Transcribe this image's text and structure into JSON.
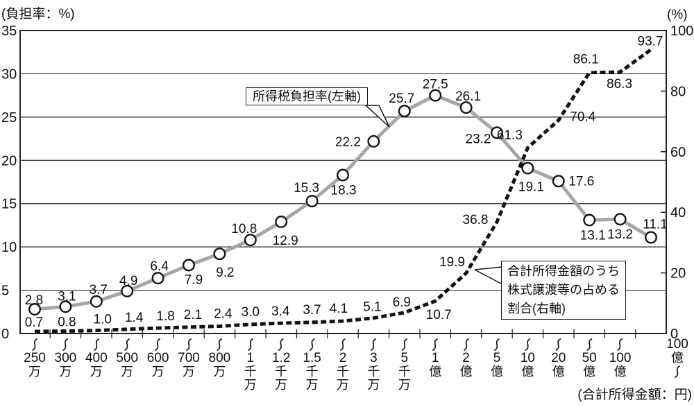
{
  "figure": {
    "left_axis_title": "(負担率：%)",
    "right_axis_title": "(%)",
    "x_axis_title": "(合計所得金額：円)"
  },
  "callouts": {
    "series1_label": "所得税負担率(左軸)",
    "series2_lines": [
      "合計所得金額のうち",
      "株式譲渡等の占める",
      "割合(右軸)"
    ]
  },
  "chart_data": {
    "type": "line",
    "title": "",
    "x_categories": [
      "〜250万",
      "〜300万",
      "〜400万",
      "〜500万",
      "〜600万",
      "〜700万",
      "〜800万",
      "〜1千万",
      "〜1.2千万",
      "〜1.5千万",
      "〜2千万",
      "〜3千万",
      "〜5千万",
      "〜1億",
      "〜2億",
      "〜5億",
      "〜10億",
      "〜20億",
      "〜50億",
      "〜100億",
      "100億〜"
    ],
    "x_category_render": [
      {
        "wave": "top",
        "num": "250",
        "units": "万"
      },
      {
        "wave": "top",
        "num": "300",
        "units": "万"
      },
      {
        "wave": "top",
        "num": "400",
        "units": "万"
      },
      {
        "wave": "top",
        "num": "500",
        "units": "万"
      },
      {
        "wave": "top",
        "num": "600",
        "units": "万"
      },
      {
        "wave": "top",
        "num": "700",
        "units": "万"
      },
      {
        "wave": "top",
        "num": "800",
        "units": "万"
      },
      {
        "wave": "top",
        "num": "1",
        "units": "千万"
      },
      {
        "wave": "top",
        "num": "1.2",
        "units": "千万"
      },
      {
        "wave": "top",
        "num": "1.5",
        "units": "千万"
      },
      {
        "wave": "top",
        "num": "2",
        "units": "千万"
      },
      {
        "wave": "top",
        "num": "3",
        "units": "千万"
      },
      {
        "wave": "top",
        "num": "5",
        "units": "千万"
      },
      {
        "wave": "top",
        "num": "1",
        "units": "億"
      },
      {
        "wave": "top",
        "num": "2",
        "units": "億"
      },
      {
        "wave": "top",
        "num": "5",
        "units": "億"
      },
      {
        "wave": "top",
        "num": "10",
        "units": "億"
      },
      {
        "wave": "top",
        "num": "20",
        "units": "億"
      },
      {
        "wave": "top",
        "num": "50",
        "units": "億"
      },
      {
        "wave": "top",
        "num": "100",
        "units": "億"
      },
      {
        "wave": "bottom",
        "num": "100",
        "units": "億"
      }
    ],
    "series": [
      {
        "name": "所得税負担率(左軸)",
        "axis": "left",
        "line": "solid",
        "color": "#a6a6a6",
        "marker": "circle",
        "values": [
          2.8,
          3.1,
          3.7,
          4.9,
          6.4,
          7.9,
          9.2,
          10.8,
          12.9,
          15.3,
          18.3,
          22.2,
          25.7,
          27.5,
          26.1,
          23.2,
          19.1,
          17.6,
          13.1,
          13.2,
          11.1
        ]
      },
      {
        "name": "合計所得金額のうち株式譲渡等の占める割合(右軸)",
        "axis": "right",
        "line": "dashed",
        "color": "#121212",
        "marker": "none",
        "values": [
          0.7,
          0.8,
          1.0,
          1.4,
          1.8,
          2.1,
          2.4,
          3.0,
          3.4,
          3.7,
          4.1,
          5.1,
          6.9,
          10.7,
          19.9,
          36.8,
          61.3,
          70.4,
          86.1,
          86.3,
          93.7
        ]
      }
    ],
    "left_axis": {
      "title": "(負担率：%)",
      "min": 0,
      "max": 35,
      "ticks": [
        0,
        5,
        10,
        15,
        20,
        25,
        30,
        35
      ]
    },
    "right_axis": {
      "title": "(%)",
      "min": 0,
      "max": 100,
      "ticks": [
        0,
        20,
        40,
        60,
        80,
        100
      ]
    },
    "x_axis": {
      "title": "(合計所得金額：円)"
    },
    "grid": "horizontal-at-left-ticks",
    "legend": "callout-boxes-inside-plot",
    "layout_hints": {
      "label_offsets": [
        [
          [
            -1,
            -7
          ],
          [
            2,
            -9
          ],
          [
            3,
            -11
          ],
          [
            2,
            -9
          ],
          [
            2,
            -11
          ],
          [
            7,
            27
          ],
          [
            8,
            33
          ],
          [
            -9,
            -10
          ],
          [
            6,
            33
          ],
          [
            -8,
            -13
          ],
          [
            1,
            28
          ],
          [
            -37,
            7
          ],
          [
            -4,
            -12
          ],
          [
            0,
            -10
          ],
          [
            3,
            -10
          ],
          [
            -27,
            15
          ],
          [
            5,
            33
          ],
          [
            33,
            6
          ],
          [
            5,
            28
          ],
          [
            0,
            28
          ],
          [
            6,
            -13
          ]
        ],
        [
          [
            -1,
            -7
          ],
          [
            2,
            -7
          ],
          [
            9,
            -10
          ],
          [
            10,
            -11
          ],
          [
            11,
            -11
          ],
          [
            6,
            -12
          ],
          [
            5,
            -12
          ],
          [
            0,
            -12
          ],
          [
            -1,
            -11
          ],
          [
            0,
            -12
          ],
          [
            -6,
            -12
          ],
          [
            -2,
            -10
          ],
          [
            -4,
            -9
          ],
          [
            5,
            26
          ],
          [
            -20,
            -10
          ],
          [
            -31,
            3
          ],
          [
            -26,
            -12
          ],
          [
            35,
            1
          ],
          [
            -5,
            -13
          ],
          [
            -1,
            23
          ],
          [
            -1,
            -6
          ]
        ]
      ]
    }
  }
}
